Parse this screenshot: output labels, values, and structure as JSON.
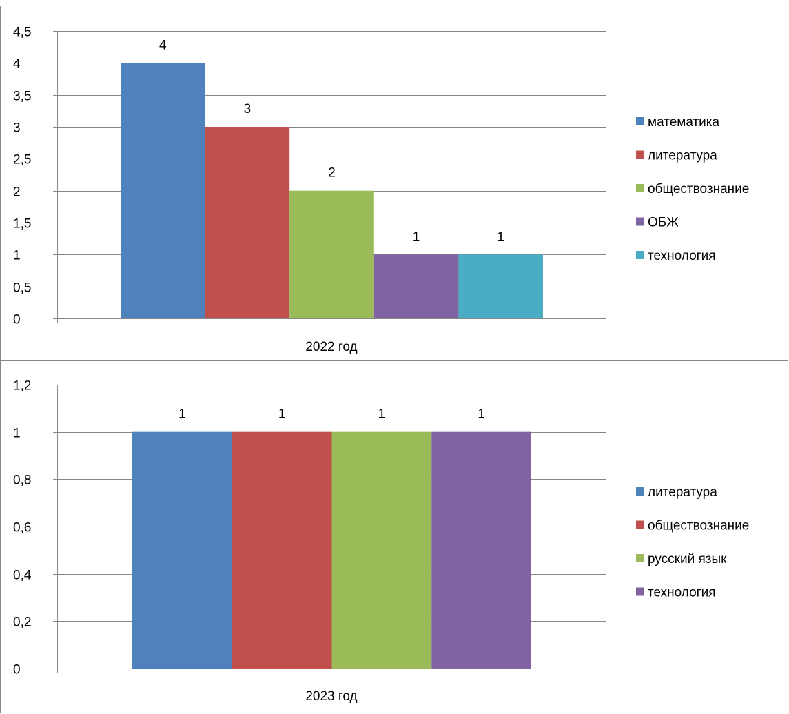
{
  "chart_data": [
    {
      "type": "bar",
      "categories": [
        "2022 год"
      ],
      "series": [
        {
          "name": "математика",
          "values": [
            4
          ]
        },
        {
          "name": "литература",
          "values": [
            3
          ]
        },
        {
          "name": "обществознание",
          "values": [
            2
          ]
        },
        {
          "name": "ОБЖ",
          "values": [
            1
          ]
        },
        {
          "name": "технология",
          "values": [
            1
          ]
        }
      ],
      "colors": [
        "#4F81BD",
        "#C0504D",
        "#9BBB59",
        "#8064A2",
        "#4BACC6"
      ],
      "ylim": [
        0,
        4.5
      ],
      "ystep": 0.5,
      "yticks": [
        "0",
        "0,5",
        "1",
        "1,5",
        "2",
        "2,5",
        "3",
        "3,5",
        "4",
        "4,5"
      ],
      "data_labels": [
        "4",
        "3",
        "2",
        "1",
        "1"
      ],
      "grid": true,
      "legend": "right"
    },
    {
      "type": "bar",
      "categories": [
        "2023 год"
      ],
      "series": [
        {
          "name": "литература",
          "values": [
            1
          ]
        },
        {
          "name": "обществознание",
          "values": [
            1
          ]
        },
        {
          "name": "русский язык",
          "values": [
            1
          ]
        },
        {
          "name": "технология",
          "values": [
            1
          ]
        }
      ],
      "colors": [
        "#4F81BD",
        "#C0504D",
        "#9BBB59",
        "#8064A2"
      ],
      "ylim": [
        0,
        1.2
      ],
      "ystep": 0.2,
      "yticks": [
        "0",
        "0,2",
        "0,4",
        "0,6",
        "0,8",
        "1",
        "1,2"
      ],
      "data_labels": [
        "1",
        "1",
        "1",
        "1"
      ],
      "grid": true,
      "legend": "right"
    }
  ]
}
